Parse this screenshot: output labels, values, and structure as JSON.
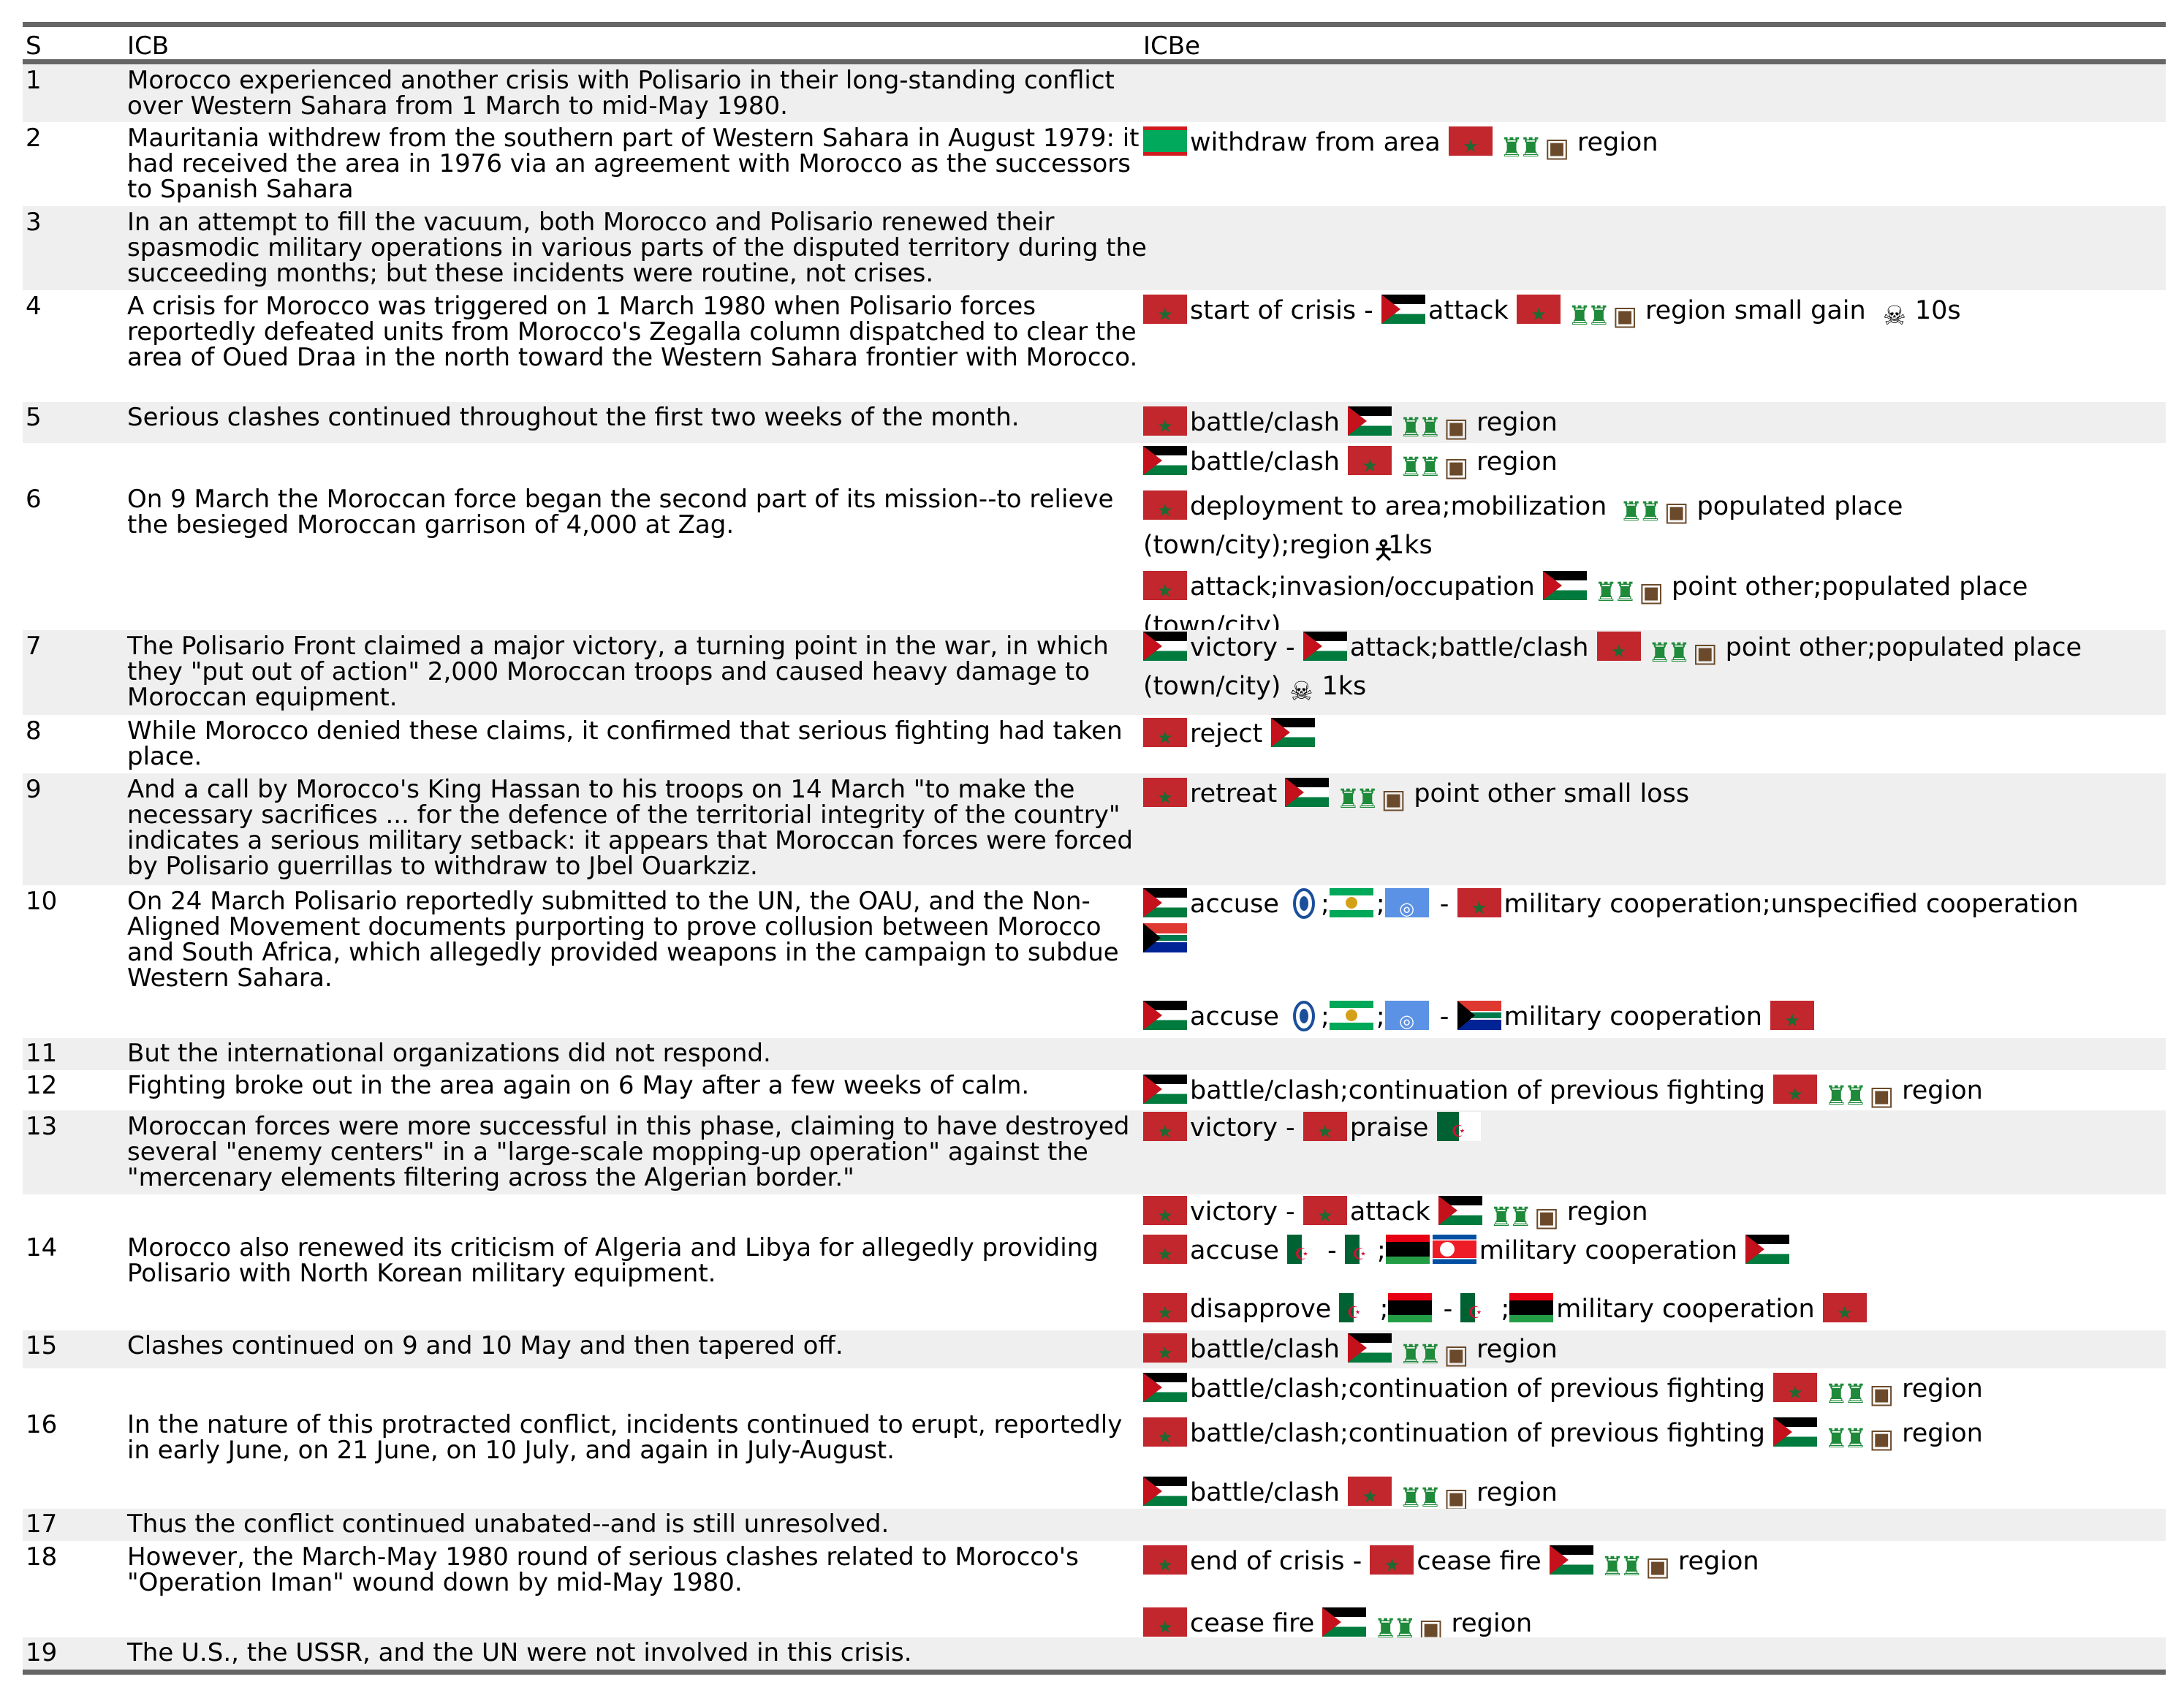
{
  "header": {
    "col_s": "S",
    "col_icb": "ICB",
    "col_icbe": "ICBe"
  },
  "rows": [
    {
      "s": "1",
      "icb": "Morocco experienced another crisis with Polisario in their long-standing conflict over Western Sahara from 1 March to mid-May 1980."
    },
    {
      "s": "2",
      "icb": "Mauritania withdrew from the southern part of Western Sahara in August 1979: it had received the area in 1976 via an agreement with Morocco as the successors to Spanish Sahara"
    },
    {
      "s": "3",
      "icb": "In an attempt to fill the vacuum, both Morocco and Polisario renewed their spasmodic military operations in various parts of the disputed territory during the succeeding months; but these incidents were routine, not crises."
    },
    {
      "s": "4",
      "icb": "A crisis for Morocco was triggered on 1 March 1980 when Polisario forces reportedly defeated units from Morocco's Zegalla column dispatched to clear the area of Oued Draa in the north toward the Western Sahara frontier with Morocco."
    },
    {
      "s": "5",
      "icb": "Serious clashes continued throughout the first two weeks of the month."
    },
    {
      "s": "6",
      "icb": "On 9 March the Moroccan force began the second part of its mission--to relieve the besieged Moroccan garrison of 4,000 at Zag."
    },
    {
      "s": "7",
      "icb": "The Polisario Front claimed a major victory, a turning point in the war, in which they \"put out of action\" 2,000 Moroccan troops and caused heavy damage to Moroccan equipment."
    },
    {
      "s": "8",
      "icb": "While Morocco denied these claims, it confirmed that serious fighting had taken place."
    },
    {
      "s": "9",
      "icb": "And a call by Morocco's King Hassan to his troops on 14 March \"to make the necessary sacrifices ... for the defence of the territorial integrity of the country\" indicates a serious military setback: it appears that Moroccan forces were forced by Polisario guerrillas to withdraw to Jbel Ouarkziz."
    },
    {
      "s": "10",
      "icb": "On 24 March Polisario reportedly submitted to the UN, the OAU, and the Non-Aligned Movement documents purporting to prove collusion between Morocco and South Africa, which allegedly provided weapons in the campaign to subdue Western Sahara."
    },
    {
      "s": "11",
      "icb": "But the international organizations did not respond."
    },
    {
      "s": "12",
      "icb": "Fighting broke out in the area again on 6 May after a few weeks of calm."
    },
    {
      "s": "13",
      "icb": "Moroccan forces were more successful in this phase, claiming to have destroyed several \"enemy centers\" in a \"large-scale mopping-up operation\" against the \"mercenary elements filtering across the Algerian border.\""
    },
    {
      "s": "14",
      "icb": "Morocco also renewed its criticism of Algeria and Libya for allegedly providing Polisario with North Korean military equipment."
    },
    {
      "s": "15",
      "icb": "Clashes continued on 9 and 10 May and then tapered off."
    },
    {
      "s": "16",
      "icb": "In the nature of this protracted conflict, incidents continued to erupt, reportedly in early June, on 21 June, on 10 July, and again in July-August."
    },
    {
      "s": "17",
      "icb": "Thus the conflict continued unabated--and is still unresolved."
    },
    {
      "s": "18",
      "icb": "However, the March-May 1980 round of serious clashes related to Morocco's \"Operation Iman\" wound down by mid-May 1980."
    },
    {
      "s": "19",
      "icb": "The U.S., the USSR, and the UN were not involved in this crisis."
    }
  ],
  "events": {
    "r2": {
      "t1": "withdraw from area",
      "t2": "region"
    },
    "r4": {
      "t1": "start of crisis -",
      "t2": "attack",
      "t3": "region small gain",
      "t4": "10s"
    },
    "r5": {
      "t1": "battle/clash",
      "t2": "region"
    },
    "r6a": {
      "t1": "battle/clash",
      "t2": "region"
    },
    "r6b": {
      "t1": "deployment to area;mobilization",
      "t2": "populated place",
      "t3": "(town/city);region",
      "t4": "1ks"
    },
    "r6c": {
      "t1": "attack;invasion/occupation",
      "t2": "point other;populated place",
      "t3": "(town/city)"
    },
    "r7": {
      "t1": "victory -",
      "t2": "attack;battle/clash",
      "t3": "point other;populated place",
      "t4": "(town/city)",
      "t5": "1ks"
    },
    "r8": {
      "t1": "reject"
    },
    "r9": {
      "t1": "retreat",
      "t2": "point other small loss"
    },
    "r10a": {
      "t1": "accuse",
      "t2": ";",
      "t3": ";",
      "t4": "-",
      "t5": "military cooperation;unspecified cooperation"
    },
    "r10b": {
      "t1": "accuse",
      "t2": ";",
      "t3": ";",
      "t4": "-",
      "t5": "military cooperation"
    },
    "r12": {
      "t1": "battle/clash;continuation of previous fighting",
      "t2": "region"
    },
    "r13": {
      "t1": "victory -",
      "t2": "praise"
    },
    "r14a": {
      "t1": "victory -",
      "t2": "attack",
      "t3": "region"
    },
    "r14b": {
      "t1": "accuse",
      "t2": "-",
      "t3": ";",
      "t4": "military cooperation"
    },
    "r14c": {
      "t1": "disapprove",
      "t2": ";",
      "t3": "-",
      "t4": ";",
      "t5": "military cooperation"
    },
    "r15": {
      "t1": "battle/clash",
      "t2": "region"
    },
    "r16a": {
      "t1": "battle/clash;continuation of previous fighting",
      "t2": "region"
    },
    "r16b": {
      "t1": "battle/clash;continuation of previous fighting",
      "t2": "region"
    },
    "r16c": {
      "t1": "battle/clash",
      "t2": "region"
    },
    "r18a": {
      "t1": "end of crisis -",
      "t2": "cease fire",
      "t3": "region"
    },
    "r18b": {
      "t1": "cease fire",
      "t2": "region"
    }
  },
  "icons": {
    "flag_morocco": "flag-morocco-icon",
    "flag_mauritania": "flag-mauritania-icon",
    "flag_polisario": "flag-western-sahara-icon",
    "flag_algeria": "flag-algeria-icon",
    "flag_libya": "flag-libya-icon",
    "flag_north_korea": "flag-north-korea-icon",
    "flag_south_africa": "flag-south-africa-icon",
    "flag_un": "flag-un-icon",
    "flag_oau": "flag-oau-icon",
    "nam": "non-aligned-movement-icon",
    "military": "military-forces-icon",
    "territory": "territory-cube-icon",
    "fatalities": "skull-crossbones-icon",
    "people": "person-icon"
  },
  "colors": {
    "rule": "#666666",
    "row_shade": "#efefef"
  }
}
